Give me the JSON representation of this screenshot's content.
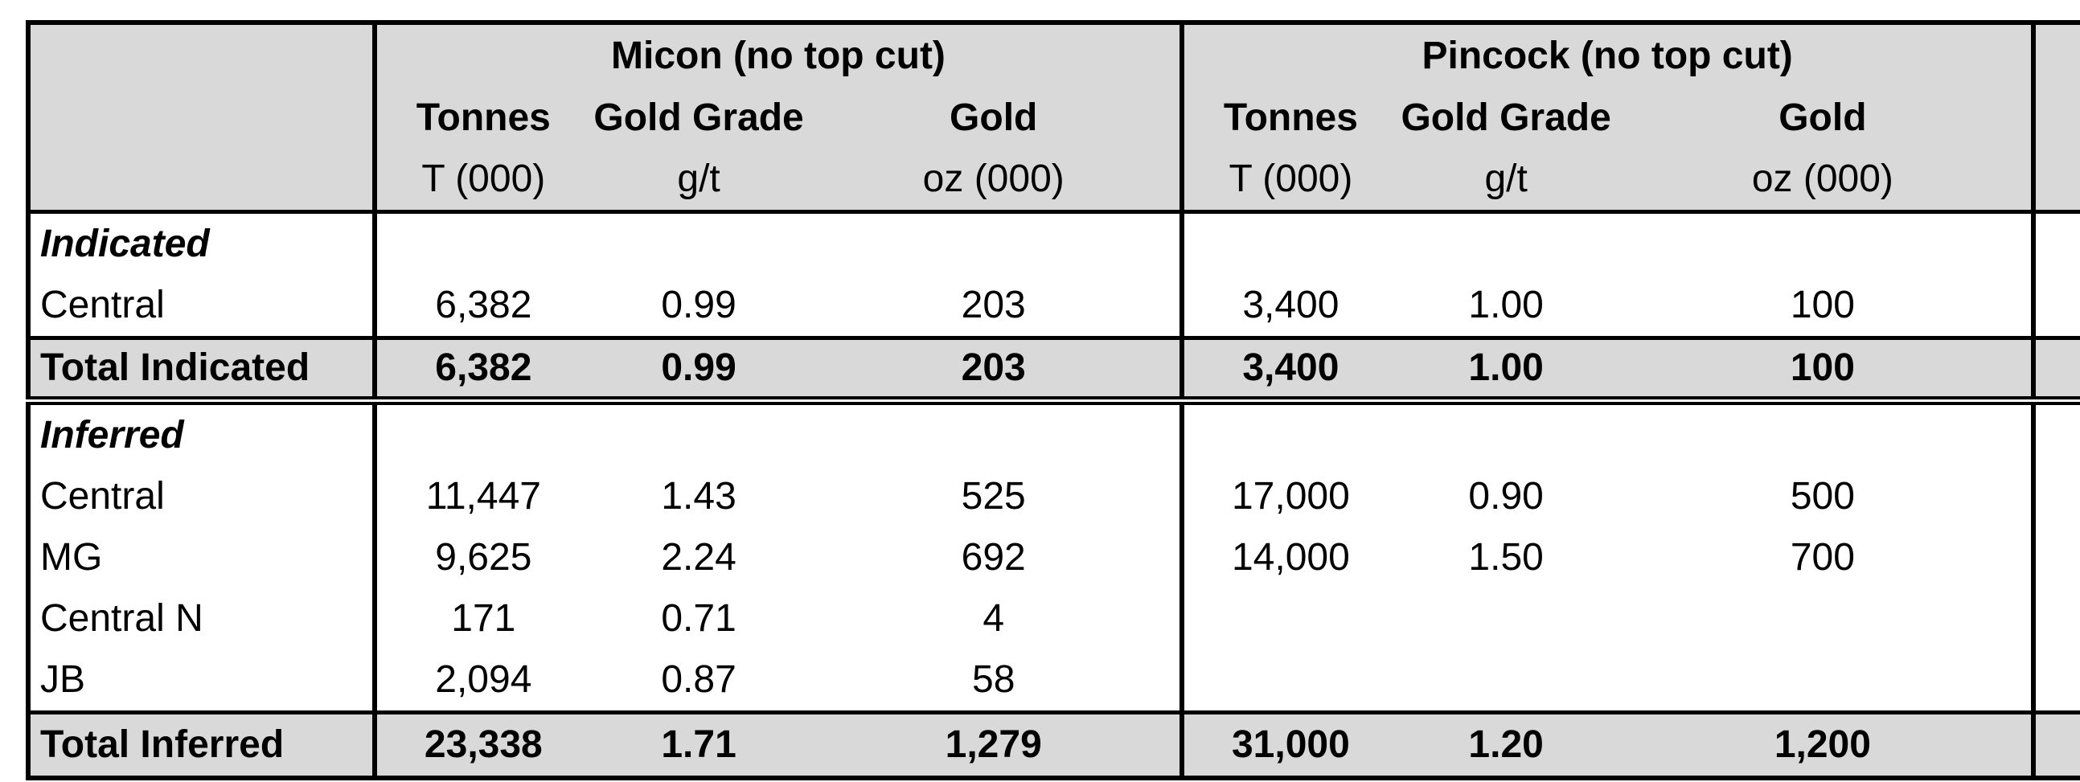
{
  "groups": {
    "micon": "Micon (no top cut)",
    "pincock": "Pincock (no top cut)"
  },
  "columns": {
    "tonnes": "Tonnes",
    "gold_grade": "Gold Grade",
    "gold": "Gold",
    "tonnes_unit": "T (000)",
    "grade_unit": "g/t",
    "gold_unit": "oz (000)"
  },
  "sections": {
    "indicated": "Indicated",
    "inferred": "Inferred"
  },
  "rows": {
    "ind_central": {
      "label": "Central",
      "m_t": "6,382",
      "m_g": "0.99",
      "m_oz": "203",
      "p_t": "3,400",
      "p_g": "1.00",
      "p_oz": "100"
    },
    "total_indicated": {
      "label": "Total Indicated",
      "m_t": "6,382",
      "m_g": "0.99",
      "m_oz": "203",
      "p_t": "3,400",
      "p_g": "1.00",
      "p_oz": "100"
    },
    "inf_central": {
      "label": "Central",
      "m_t": "11,447",
      "m_g": "1.43",
      "m_oz": "525",
      "p_t": "17,000",
      "p_g": "0.90",
      "p_oz": "500"
    },
    "inf_mg": {
      "label": "MG",
      "m_t": "9,625",
      "m_g": "2.24",
      "m_oz": "692",
      "p_t": "14,000",
      "p_g": "1.50",
      "p_oz": "700"
    },
    "inf_central_n": {
      "label": "Central N",
      "m_t": "171",
      "m_g": "0.71",
      "m_oz": "4"
    },
    "inf_jb": {
      "label": "JB",
      "m_t": "2,094",
      "m_g": "0.87",
      "m_oz": "58"
    },
    "total_inferred": {
      "label": "Total Inferred",
      "m_t": "23,338",
      "m_g": "1.71",
      "m_oz": "1,279",
      "p_t": "31,000",
      "p_g": "1.20",
      "p_oz": "1,200"
    }
  }
}
